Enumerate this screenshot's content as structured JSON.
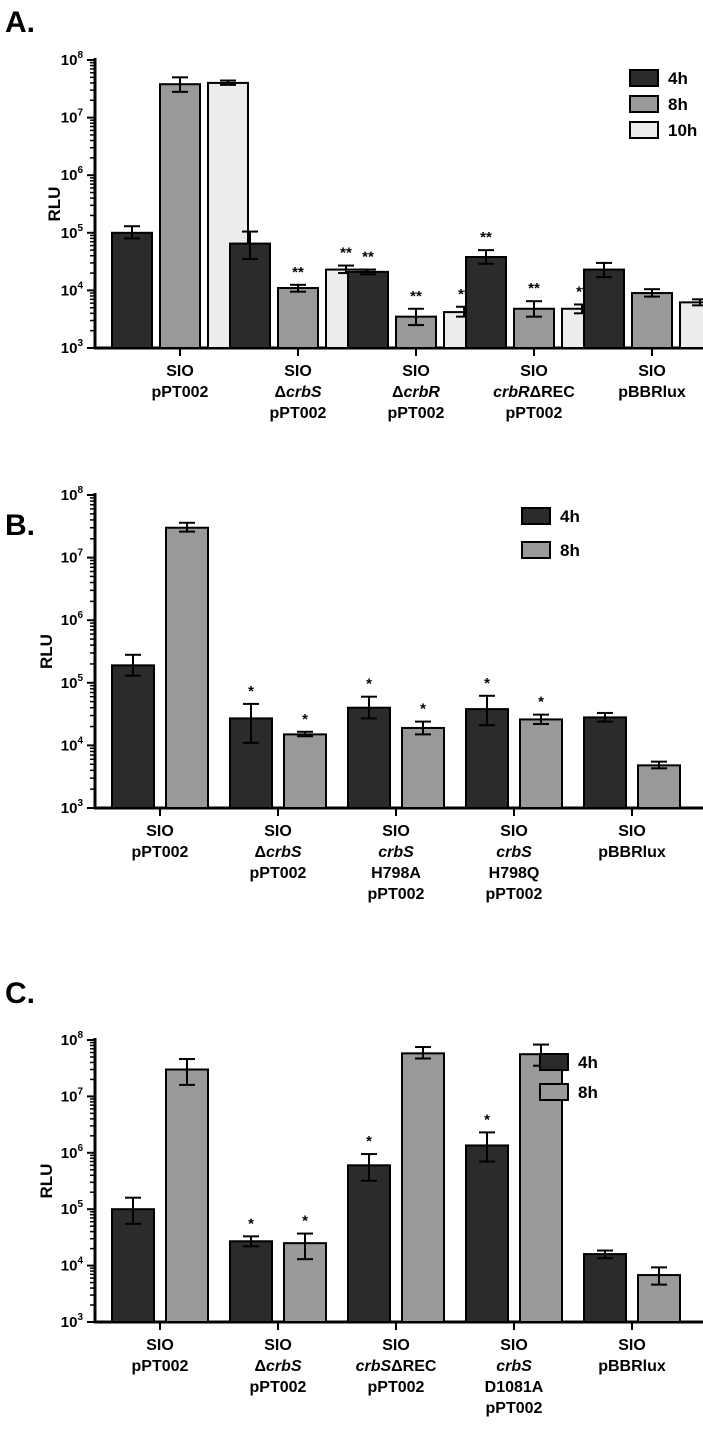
{
  "chart_data": [
    {
      "type": "bar",
      "panel_label": "A.",
      "ylabel": "RLU",
      "yscale": "log",
      "ylim": [
        1000,
        100000000
      ],
      "yticks": [
        {
          "base": "10",
          "exp": "3"
        },
        {
          "base": "10",
          "exp": "4"
        },
        {
          "base": "10",
          "exp": "5"
        },
        {
          "base": "10",
          "exp": "6"
        },
        {
          "base": "10",
          "exp": "7"
        },
        {
          "base": "10",
          "exp": "8"
        }
      ],
      "legend_position": "top-right",
      "categories": [
        {
          "lines": [
            [
              {
                "t": "SIO",
                "it": false
              }
            ],
            [
              {
                "t": "pPT002",
                "it": false
              }
            ]
          ]
        },
        {
          "lines": [
            [
              {
                "t": "SIO",
                "it": false
              }
            ],
            [
              {
                "t": "Δ",
                "it": false
              },
              {
                "t": "crbS",
                "it": true
              }
            ],
            [
              {
                "t": "pPT002",
                "it": false
              }
            ]
          ]
        },
        {
          "lines": [
            [
              {
                "t": "SIO",
                "it": false
              }
            ],
            [
              {
                "t": "Δ",
                "it": false
              },
              {
                "t": "crbR",
                "it": true
              }
            ],
            [
              {
                "t": "pPT002",
                "it": false
              }
            ]
          ]
        },
        {
          "lines": [
            [
              {
                "t": "SIO",
                "it": false
              }
            ],
            [
              {
                "t": "crbR",
                "it": true
              },
              {
                "t": "ΔREC",
                "it": false
              }
            ],
            [
              {
                "t": "pPT002",
                "it": false
              }
            ]
          ]
        },
        {
          "lines": [
            [
              {
                "t": "SIO",
                "it": false
              }
            ],
            [
              {
                "t": "pBBRlux",
                "it": false
              }
            ]
          ]
        }
      ],
      "series": [
        {
          "name": "4h",
          "color": "#2b2b2b",
          "values": [
            100000,
            65000,
            21000,
            38000,
            23000
          ],
          "err_low": [
            80000,
            35000,
            19000,
            29000,
            17000
          ],
          "err_high": [
            130000,
            105000,
            23000,
            50000,
            30000
          ],
          "stars": [
            "",
            "",
            "**",
            "**",
            ""
          ]
        },
        {
          "name": "8h",
          "color": "#999999",
          "values": [
            38000000,
            11000,
            3500,
            4800,
            9000
          ],
          "err_low": [
            28000000,
            9500,
            2500,
            3500,
            7800
          ],
          "err_high": [
            50000000,
            12500,
            4800,
            6500,
            10500
          ],
          "stars": [
            "",
            "**",
            "**",
            "**",
            ""
          ]
        },
        {
          "name": "10h",
          "color": "#ececec",
          "values": [
            40000000,
            23000,
            4200,
            4800,
            6200
          ],
          "err_low": [
            37000000,
            20000,
            3500,
            4000,
            5500
          ],
          "err_high": [
            44000000,
            27000,
            5200,
            5700,
            7000
          ],
          "stars": [
            "",
            "**",
            "**",
            "**",
            ""
          ]
        }
      ]
    },
    {
      "type": "bar",
      "panel_label": "B.",
      "ylabel": "RLU",
      "yscale": "log",
      "ylim": [
        1000,
        100000000
      ],
      "yticks": [
        {
          "base": "10",
          "exp": "3"
        },
        {
          "base": "10",
          "exp": "4"
        },
        {
          "base": "10",
          "exp": "5"
        },
        {
          "base": "10",
          "exp": "6"
        },
        {
          "base": "10",
          "exp": "7"
        },
        {
          "base": "10",
          "exp": "8"
        }
      ],
      "legend_position": "top-right",
      "categories": [
        {
          "lines": [
            [
              {
                "t": "SIO",
                "it": false
              }
            ],
            [
              {
                "t": "pPT002",
                "it": false
              }
            ]
          ]
        },
        {
          "lines": [
            [
              {
                "t": "SIO",
                "it": false
              }
            ],
            [
              {
                "t": "Δ",
                "it": false
              },
              {
                "t": "crbS",
                "it": true
              }
            ],
            [
              {
                "t": "pPT002",
                "it": false
              }
            ]
          ]
        },
        {
          "lines": [
            [
              {
                "t": "SIO",
                "it": false
              }
            ],
            [
              {
                "t": "crbS",
                "it": true
              }
            ],
            [
              {
                "t": "H798A",
                "it": false
              }
            ],
            [
              {
                "t": "pPT002",
                "it": false
              }
            ]
          ]
        },
        {
          "lines": [
            [
              {
                "t": "SIO",
                "it": false
              }
            ],
            [
              {
                "t": "crbS",
                "it": true
              }
            ],
            [
              {
                "t": "H798Q",
                "it": false
              }
            ],
            [
              {
                "t": "pPT002",
                "it": false
              }
            ]
          ]
        },
        {
          "lines": [
            [
              {
                "t": "SIO",
                "it": false
              }
            ],
            [
              {
                "t": "pBBRlux",
                "it": false
              }
            ]
          ]
        }
      ],
      "series": [
        {
          "name": "4h",
          "color": "#2b2b2b",
          "values": [
            190000,
            27000,
            40000,
            38000,
            28000
          ],
          "err_low": [
            130000,
            11000,
            27000,
            21000,
            24000
          ],
          "err_high": [
            280000,
            46000,
            60000,
            62000,
            33000
          ],
          "stars": [
            "",
            "*",
            "*",
            "*",
            ""
          ]
        },
        {
          "name": "8h",
          "color": "#999999",
          "values": [
            30000000,
            15000,
            19000,
            26000,
            4800
          ],
          "err_low": [
            26000000,
            14000,
            15000,
            22000,
            4300
          ],
          "err_high": [
            36000000,
            16500,
            24000,
            31000,
            5500
          ],
          "stars": [
            "",
            "*",
            "*",
            "*",
            ""
          ]
        }
      ]
    },
    {
      "type": "bar",
      "panel_label": "C.",
      "ylabel": "RLU",
      "yscale": "log",
      "ylim": [
        1000,
        100000000
      ],
      "yticks": [
        {
          "base": "10",
          "exp": "3"
        },
        {
          "base": "10",
          "exp": "4"
        },
        {
          "base": "10",
          "exp": "5"
        },
        {
          "base": "10",
          "exp": "6"
        },
        {
          "base": "10",
          "exp": "7"
        },
        {
          "base": "10",
          "exp": "8"
        }
      ],
      "legend_position": "top-right",
      "categories": [
        {
          "lines": [
            [
              {
                "t": "SIO",
                "it": false
              }
            ],
            [
              {
                "t": "pPT002",
                "it": false
              }
            ]
          ]
        },
        {
          "lines": [
            [
              {
                "t": "SIO",
                "it": false
              }
            ],
            [
              {
                "t": "Δ",
                "it": false
              },
              {
                "t": "crbS",
                "it": true
              }
            ],
            [
              {
                "t": "pPT002",
                "it": false
              }
            ]
          ]
        },
        {
          "lines": [
            [
              {
                "t": "SIO",
                "it": false
              }
            ],
            [
              {
                "t": "crbS",
                "it": true
              },
              {
                "t": "ΔREC",
                "it": false
              }
            ],
            [
              {
                "t": "pPT002",
                "it": false
              }
            ]
          ]
        },
        {
          "lines": [
            [
              {
                "t": "SIO",
                "it": false
              }
            ],
            [
              {
                "t": "crbS",
                "it": true
              }
            ],
            [
              {
                "t": "D1081A",
                "it": false
              }
            ],
            [
              {
                "t": "pPT002",
                "it": false
              }
            ]
          ]
        },
        {
          "lines": [
            [
              {
                "t": "SIO",
                "it": false
              }
            ],
            [
              {
                "t": "pBBRlux",
                "it": false
              }
            ]
          ]
        }
      ],
      "series": [
        {
          "name": "4h",
          "color": "#2b2b2b",
          "values": [
            100000,
            27000,
            600000,
            1350000,
            16000
          ],
          "err_low": [
            55000,
            22000,
            320000,
            700000,
            13500
          ],
          "err_high": [
            160000,
            33000,
            950000,
            2300000,
            18500
          ],
          "stars": [
            "",
            "*",
            "*",
            "*",
            ""
          ]
        },
        {
          "name": "8h",
          "color": "#999999",
          "values": [
            30000000,
            25000,
            58000000,
            56000000,
            6800
          ],
          "err_low": [
            16000000,
            13000,
            47000000,
            35000000,
            4600
          ],
          "err_high": [
            46000000,
            37000,
            75000000,
            83000000,
            9300
          ],
          "stars": [
            "",
            "*",
            "",
            "",
            ""
          ]
        }
      ]
    }
  ]
}
